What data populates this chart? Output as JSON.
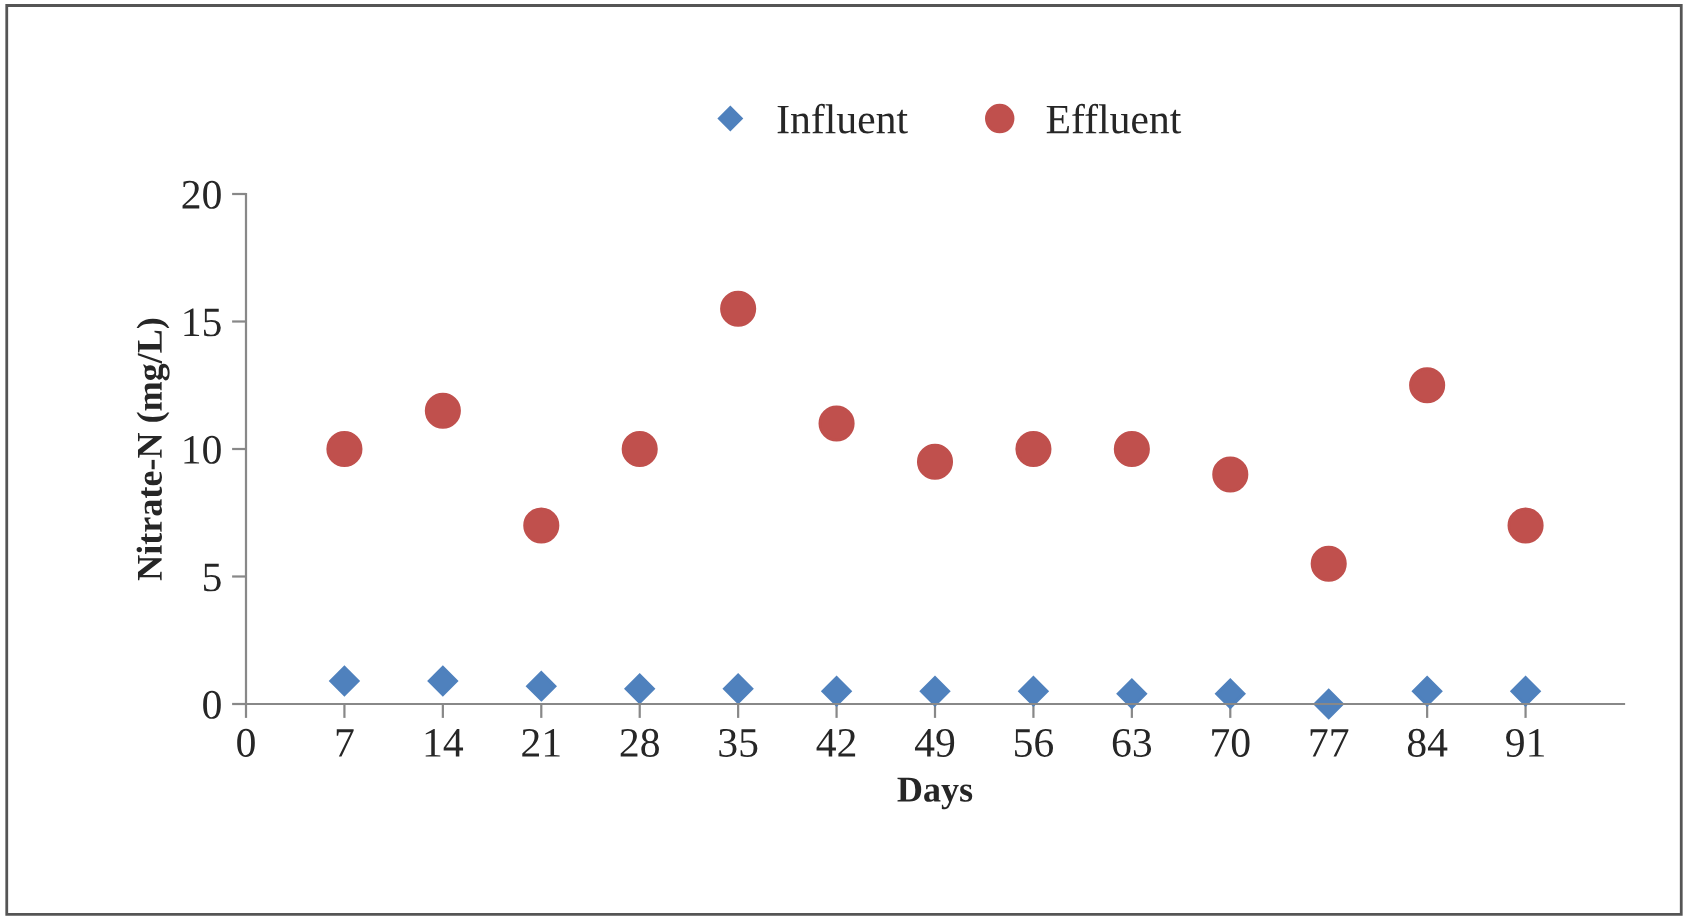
{
  "chart_data": {
    "type": "scatter",
    "xlabel": "Days",
    "ylabel": "Nitrate-N (mg/L)",
    "x": [
      7,
      14,
      21,
      28,
      35,
      42,
      49,
      56,
      63,
      70,
      77,
      84,
      91
    ],
    "series": [
      {
        "name": "Influent",
        "color": "#4f81bd",
        "marker": "diamond",
        "values": [
          0.9,
          0.9,
          0.7,
          0.6,
          0.6,
          0.5,
          0.5,
          0.5,
          0.4,
          0.4,
          0.0,
          0.5,
          0.5
        ]
      },
      {
        "name": "Effluent",
        "color": "#c0504d",
        "marker": "circle",
        "values": [
          10,
          11.5,
          7,
          10,
          15.5,
          11,
          9.5,
          10,
          10,
          9,
          5.5,
          12.5,
          7
        ]
      }
    ],
    "xlim": [
      0,
      98
    ],
    "xticks": [
      0,
      7,
      14,
      21,
      28,
      35,
      42,
      49,
      56,
      63,
      70,
      77,
      84,
      91
    ],
    "ylim": [
      0,
      20
    ],
    "yticks": [
      0,
      5,
      10,
      15,
      20
    ],
    "legend": "top",
    "grid": false
  }
}
